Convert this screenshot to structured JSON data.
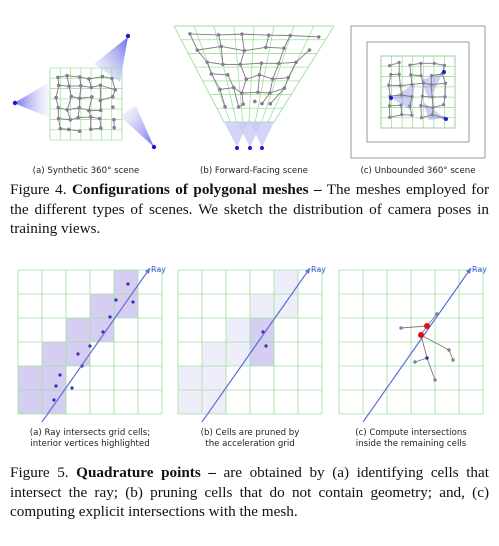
{
  "figure4": {
    "panels": [
      {
        "label": "(a) Synthetic 360° scene"
      },
      {
        "label": "(b) Forward-Facing scene"
      },
      {
        "label": "(c) Unbounded 360° scene"
      }
    ],
    "caption": {
      "number": "Figure 4.",
      "title": "Configurations of polygonal meshes –",
      "body": "The meshes employed for the different types of scenes. We sketch the distribution of camera poses in training views."
    }
  },
  "figure5": {
    "ray_label": "Ray",
    "panels": [
      {
        "label_line1": "(a) Ray intersects grid cells;",
        "label_line2": "interior vertices highlighted"
      },
      {
        "label_line1": "(b) Cells are pruned by",
        "label_line2": "the acceleration grid"
      },
      {
        "label_line1": "(c) Compute intersections",
        "label_line2": "inside the remaining cells"
      }
    ],
    "caption": {
      "number": "Figure 5.",
      "title": "Quadrature points –",
      "body": "are obtained by (a) identifying cells that intersect the ray; (b) pruning cells that do not contain geometry; and, (c) computing explicit intersections with the mesh."
    }
  },
  "colors": {
    "grid": "#9fe09f",
    "mesh_edge": "#7a7a7a",
    "mesh_vertex": "#8a7a9a",
    "camera": "#1a1ad6",
    "frustum": "#c9c9f5",
    "highlight_cell": "#d5cdf2",
    "pruned_cell": "#eeeefb",
    "ray": "#5a6fd6",
    "intersection": "#e01010"
  }
}
